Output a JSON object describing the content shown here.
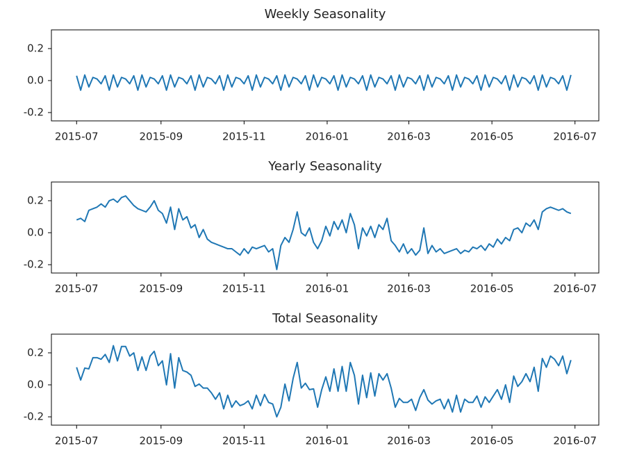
{
  "chart_data": [
    {
      "type": "line",
      "title": "Weekly Seasonality",
      "x": [
        0,
        3,
        6,
        9,
        12,
        15,
        18,
        21,
        24,
        27,
        30,
        33,
        36,
        39,
        42,
        45,
        48,
        51,
        54,
        57,
        60,
        63,
        66,
        69,
        72,
        75,
        78,
        81,
        84,
        87,
        90,
        93,
        96,
        99,
        102,
        105,
        108,
        111,
        114,
        117,
        120,
        123,
        126,
        129,
        132,
        135,
        138,
        141,
        144,
        147,
        150,
        153,
        156,
        159,
        162,
        165,
        168,
        171,
        174,
        177,
        180,
        183,
        186,
        189,
        192,
        195,
        198,
        201,
        204,
        207,
        210,
        213,
        216,
        219,
        222,
        225,
        228,
        231,
        234,
        237,
        240,
        243,
        246,
        249,
        252,
        255,
        258,
        261,
        264,
        267,
        270,
        273,
        276,
        279,
        282,
        285,
        288,
        291,
        294,
        297,
        300,
        303,
        306,
        309,
        312,
        315,
        318,
        321,
        324,
        327,
        330,
        333,
        336,
        339,
        342,
        345,
        348,
        351,
        354,
        357,
        360,
        363
      ],
      "series": [
        {
          "color": "#1f77b4",
          "values": [
            0.03,
            -0.06,
            0.035,
            -0.04,
            0.02,
            0.01,
            -0.02,
            0.03,
            -0.06,
            0.035,
            -0.04,
            0.02,
            0.01,
            -0.02,
            0.03,
            -0.06,
            0.035,
            -0.04,
            0.02,
            0.01,
            -0.02,
            0.03,
            -0.06,
            0.035,
            -0.04,
            0.02,
            0.01,
            -0.02,
            0.03,
            -0.06,
            0.035,
            -0.04,
            0.02,
            0.01,
            -0.02,
            0.03,
            -0.06,
            0.035,
            -0.04,
            0.02,
            0.01,
            -0.02,
            0.03,
            -0.06,
            0.035,
            -0.04,
            0.02,
            0.01,
            -0.02,
            0.03,
            -0.06,
            0.035,
            -0.04,
            0.02,
            0.01,
            -0.02,
            0.03,
            -0.06,
            0.035,
            -0.04,
            0.02,
            0.01,
            -0.02,
            0.03,
            -0.06,
            0.035,
            -0.04,
            0.02,
            0.01,
            -0.02,
            0.03,
            -0.06,
            0.035,
            -0.04,
            0.02,
            0.01,
            -0.02,
            0.03,
            -0.06,
            0.035,
            -0.04,
            0.02,
            0.01,
            -0.02,
            0.03,
            -0.06,
            0.035,
            -0.04,
            0.02,
            0.01,
            -0.02,
            0.03,
            -0.06,
            0.035,
            -0.04,
            0.02,
            0.01,
            -0.02,
            0.03,
            -0.06,
            0.035,
            -0.04,
            0.02,
            0.01,
            -0.02,
            0.03,
            -0.06,
            0.035,
            -0.04,
            0.02,
            0.01,
            -0.02,
            0.03,
            -0.06,
            0.035,
            -0.04,
            0.02,
            0.01,
            -0.02,
            0.03,
            -0.06,
            0.035
          ]
        }
      ],
      "xlim": [
        -18.5,
        383.5
      ],
      "ylim": [
        -0.252,
        0.317
      ],
      "xticks": [
        {
          "value": 0,
          "label": "2015-07"
        },
        {
          "value": 62,
          "label": "2015-09"
        },
        {
          "value": 123,
          "label": "2015-11"
        },
        {
          "value": 184,
          "label": "2016-01"
        },
        {
          "value": 244,
          "label": "2016-03"
        },
        {
          "value": 305,
          "label": "2016-05"
        },
        {
          "value": 366,
          "label": "2016-07"
        }
      ],
      "yticks": [
        -0.2,
        {
          "value": 0,
          "label": "0.0"
        },
        0.2
      ]
    },
    {
      "type": "line",
      "title": "Yearly Seasonality",
      "x": [
        0,
        3,
        6,
        9,
        12,
        15,
        18,
        21,
        24,
        27,
        30,
        33,
        36,
        39,
        42,
        45,
        48,
        51,
        54,
        57,
        60,
        63,
        66,
        69,
        72,
        75,
        78,
        81,
        84,
        87,
        90,
        93,
        96,
        99,
        102,
        105,
        108,
        111,
        114,
        117,
        120,
        123,
        126,
        129,
        132,
        135,
        138,
        141,
        144,
        147,
        150,
        153,
        156,
        159,
        162,
        165,
        168,
        171,
        174,
        177,
        180,
        183,
        186,
        189,
        192,
        195,
        198,
        201,
        204,
        207,
        210,
        213,
        216,
        219,
        222,
        225,
        228,
        231,
        234,
        237,
        240,
        243,
        246,
        249,
        252,
        255,
        258,
        261,
        264,
        267,
        270,
        273,
        276,
        279,
        282,
        285,
        288,
        291,
        294,
        297,
        300,
        303,
        306,
        309,
        312,
        315,
        318,
        321,
        324,
        327,
        330,
        333,
        336,
        339,
        342,
        345,
        348,
        351,
        354,
        357,
        360,
        363
      ],
      "series": [
        {
          "color": "#1f77b4",
          "values": [
            0.08,
            0.09,
            0.07,
            0.14,
            0.15,
            0.16,
            0.18,
            0.16,
            0.2,
            0.21,
            0.19,
            0.22,
            0.23,
            0.2,
            0.17,
            0.15,
            0.14,
            0.13,
            0.16,
            0.2,
            0.14,
            0.12,
            0.06,
            0.16,
            0.02,
            0.15,
            0.08,
            0.1,
            0.03,
            0.05,
            -0.03,
            0.02,
            -0.04,
            -0.06,
            -0.07,
            -0.08,
            -0.09,
            -0.1,
            -0.1,
            -0.12,
            -0.14,
            -0.1,
            -0.13,
            -0.09,
            -0.1,
            -0.09,
            -0.08,
            -0.12,
            -0.1,
            -0.23,
            -0.08,
            -0.03,
            -0.06,
            0.02,
            0.13,
            0.0,
            -0.02,
            0.03,
            -0.06,
            -0.1,
            -0.05,
            0.04,
            -0.02,
            0.07,
            0.02,
            0.08,
            0.0,
            0.12,
            0.05,
            -0.1,
            0.03,
            -0.02,
            0.04,
            -0.03,
            0.05,
            0.02,
            0.09,
            -0.05,
            -0.08,
            -0.12,
            -0.07,
            -0.13,
            -0.1,
            -0.14,
            -0.11,
            0.03,
            -0.13,
            -0.08,
            -0.12,
            -0.1,
            -0.13,
            -0.12,
            -0.11,
            -0.1,
            -0.13,
            -0.11,
            -0.12,
            -0.09,
            -0.1,
            -0.08,
            -0.11,
            -0.07,
            -0.09,
            -0.04,
            -0.07,
            -0.03,
            -0.05,
            0.02,
            0.03,
            0.0,
            0.06,
            0.04,
            0.08,
            0.02,
            0.13,
            0.15,
            0.16,
            0.15,
            0.14,
            0.15,
            0.13,
            0.12
          ]
        }
      ],
      "xlim": [
        -18.5,
        383.5
      ],
      "ylim": [
        -0.252,
        0.317
      ],
      "xticks": [
        {
          "value": 0,
          "label": "2015-07"
        },
        {
          "value": 62,
          "label": "2015-09"
        },
        {
          "value": 123,
          "label": "2015-11"
        },
        {
          "value": 184,
          "label": "2016-01"
        },
        {
          "value": 244,
          "label": "2016-03"
        },
        {
          "value": 305,
          "label": "2016-05"
        },
        {
          "value": 366,
          "label": "2016-07"
        }
      ],
      "yticks": [
        -0.2,
        {
          "value": 0,
          "label": "0.0"
        },
        0.2
      ]
    },
    {
      "type": "line",
      "title": "Total Seasonality",
      "x": [
        0,
        3,
        6,
        9,
        12,
        15,
        18,
        21,
        24,
        27,
        30,
        33,
        36,
        39,
        42,
        45,
        48,
        51,
        54,
        57,
        60,
        63,
        66,
        69,
        72,
        75,
        78,
        81,
        84,
        87,
        90,
        93,
        96,
        99,
        102,
        105,
        108,
        111,
        114,
        117,
        120,
        123,
        126,
        129,
        132,
        135,
        138,
        141,
        144,
        147,
        150,
        153,
        156,
        159,
        162,
        165,
        168,
        171,
        174,
        177,
        180,
        183,
        186,
        189,
        192,
        195,
        198,
        201,
        204,
        207,
        210,
        213,
        216,
        219,
        222,
        225,
        228,
        231,
        234,
        237,
        240,
        243,
        246,
        249,
        252,
        255,
        258,
        261,
        264,
        267,
        270,
        273,
        276,
        279,
        282,
        285,
        288,
        291,
        294,
        297,
        300,
        303,
        306,
        309,
        312,
        315,
        318,
        321,
        324,
        327,
        330,
        333,
        336,
        339,
        342,
        345,
        348,
        351,
        354,
        357,
        360,
        363
      ],
      "series": [
        {
          "color": "#1f77b4",
          "values": [
            0.11,
            0.03,
            0.105,
            0.1,
            0.17,
            0.17,
            0.16,
            0.19,
            0.14,
            0.245,
            0.15,
            0.24,
            0.24,
            0.18,
            0.2,
            0.09,
            0.175,
            0.09,
            0.18,
            0.21,
            0.12,
            0.15,
            0.0,
            0.195,
            -0.02,
            0.17,
            0.09,
            0.08,
            0.06,
            -0.01,
            0.005,
            -0.02,
            -0.02,
            -0.05,
            -0.09,
            -0.05,
            -0.15,
            -0.065,
            -0.14,
            -0.1,
            -0.13,
            -0.12,
            -0.1,
            -0.15,
            -0.065,
            -0.13,
            -0.06,
            -0.11,
            -0.12,
            -0.2,
            -0.14,
            0.005,
            -0.1,
            0.04,
            0.14,
            -0.02,
            0.01,
            -0.03,
            -0.025,
            -0.14,
            -0.03,
            0.05,
            -0.04,
            0.1,
            -0.04,
            0.115,
            -0.04,
            0.14,
            0.06,
            -0.12,
            0.06,
            -0.08,
            0.075,
            -0.07,
            0.07,
            0.03,
            0.07,
            -0.02,
            -0.14,
            -0.085,
            -0.11,
            -0.11,
            -0.09,
            -0.16,
            -0.08,
            -0.03,
            -0.095,
            -0.12,
            -0.1,
            -0.09,
            -0.15,
            -0.09,
            -0.17,
            -0.065,
            -0.17,
            -0.09,
            -0.11,
            -0.11,
            -0.07,
            -0.14,
            -0.075,
            -0.11,
            -0.07,
            -0.03,
            -0.09,
            0.0,
            -0.11,
            0.055,
            -0.01,
            0.02,
            0.07,
            0.02,
            0.11,
            -0.04,
            0.165,
            0.11,
            0.18,
            0.16,
            0.12,
            0.18,
            0.07,
            0.155
          ]
        }
      ],
      "xlim": [
        -18.5,
        383.5
      ],
      "ylim": [
        -0.252,
        0.317
      ],
      "xticks": [
        {
          "value": 0,
          "label": "2015-07"
        },
        {
          "value": 62,
          "label": "2015-09"
        },
        {
          "value": 123,
          "label": "2015-11"
        },
        {
          "value": 184,
          "label": "2016-01"
        },
        {
          "value": 244,
          "label": "2016-03"
        },
        {
          "value": 305,
          "label": "2016-05"
        },
        {
          "value": 366,
          "label": "2016-07"
        }
      ],
      "yticks": [
        -0.2,
        {
          "value": 0,
          "label": "0.0"
        },
        0.2
      ]
    }
  ]
}
